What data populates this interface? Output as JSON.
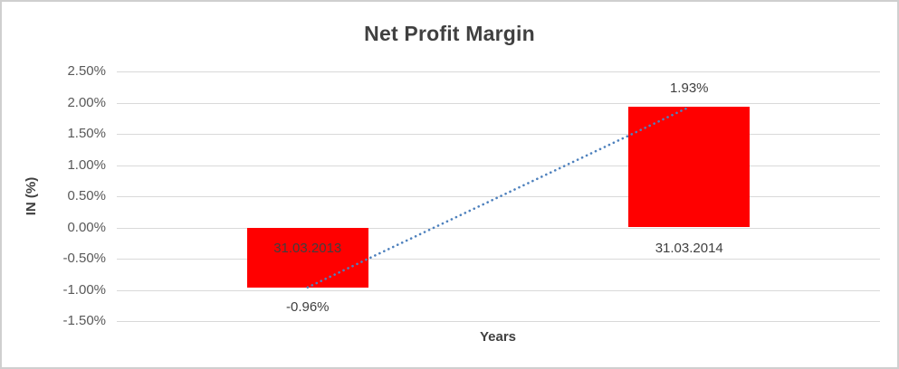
{
  "chart_data": {
    "type": "bar",
    "title": "Net Profit Margin",
    "xlabel": "Years",
    "ylabel": "IN (%)",
    "categories": [
      "31.03.2013",
      "31.03.2014"
    ],
    "values": [
      -0.96,
      1.93
    ],
    "data_labels": [
      "-0.96%",
      "1.93%"
    ],
    "y_ticks": [
      {
        "value": 2.5,
        "label": "2.50%"
      },
      {
        "value": 2.0,
        "label": "2.00%"
      },
      {
        "value": 1.5,
        "label": "1.50%"
      },
      {
        "value": 1.0,
        "label": "1.00%"
      },
      {
        "value": 0.5,
        "label": "0.50%"
      },
      {
        "value": 0.0,
        "label": "0.00%"
      },
      {
        "value": -0.5,
        "label": "-0.50%"
      },
      {
        "value": -1.0,
        "label": "-1.00%"
      },
      {
        "value": -1.5,
        "label": "-1.50%"
      }
    ],
    "ylim": [
      -1.5,
      2.5
    ],
    "grid": true,
    "legend": "none",
    "trendline": {
      "type": "linear",
      "style": "dotted",
      "from_value": -0.96,
      "to_value": 1.93
    },
    "colors": {
      "bar": "#FF0000",
      "trendline": "#4E81BD",
      "gridline": "#D9D9D9",
      "title_text": "#404040",
      "axis_text": "#595959",
      "label_text": "#3F3F3F",
      "frame_border": "#CFCFCF"
    }
  }
}
